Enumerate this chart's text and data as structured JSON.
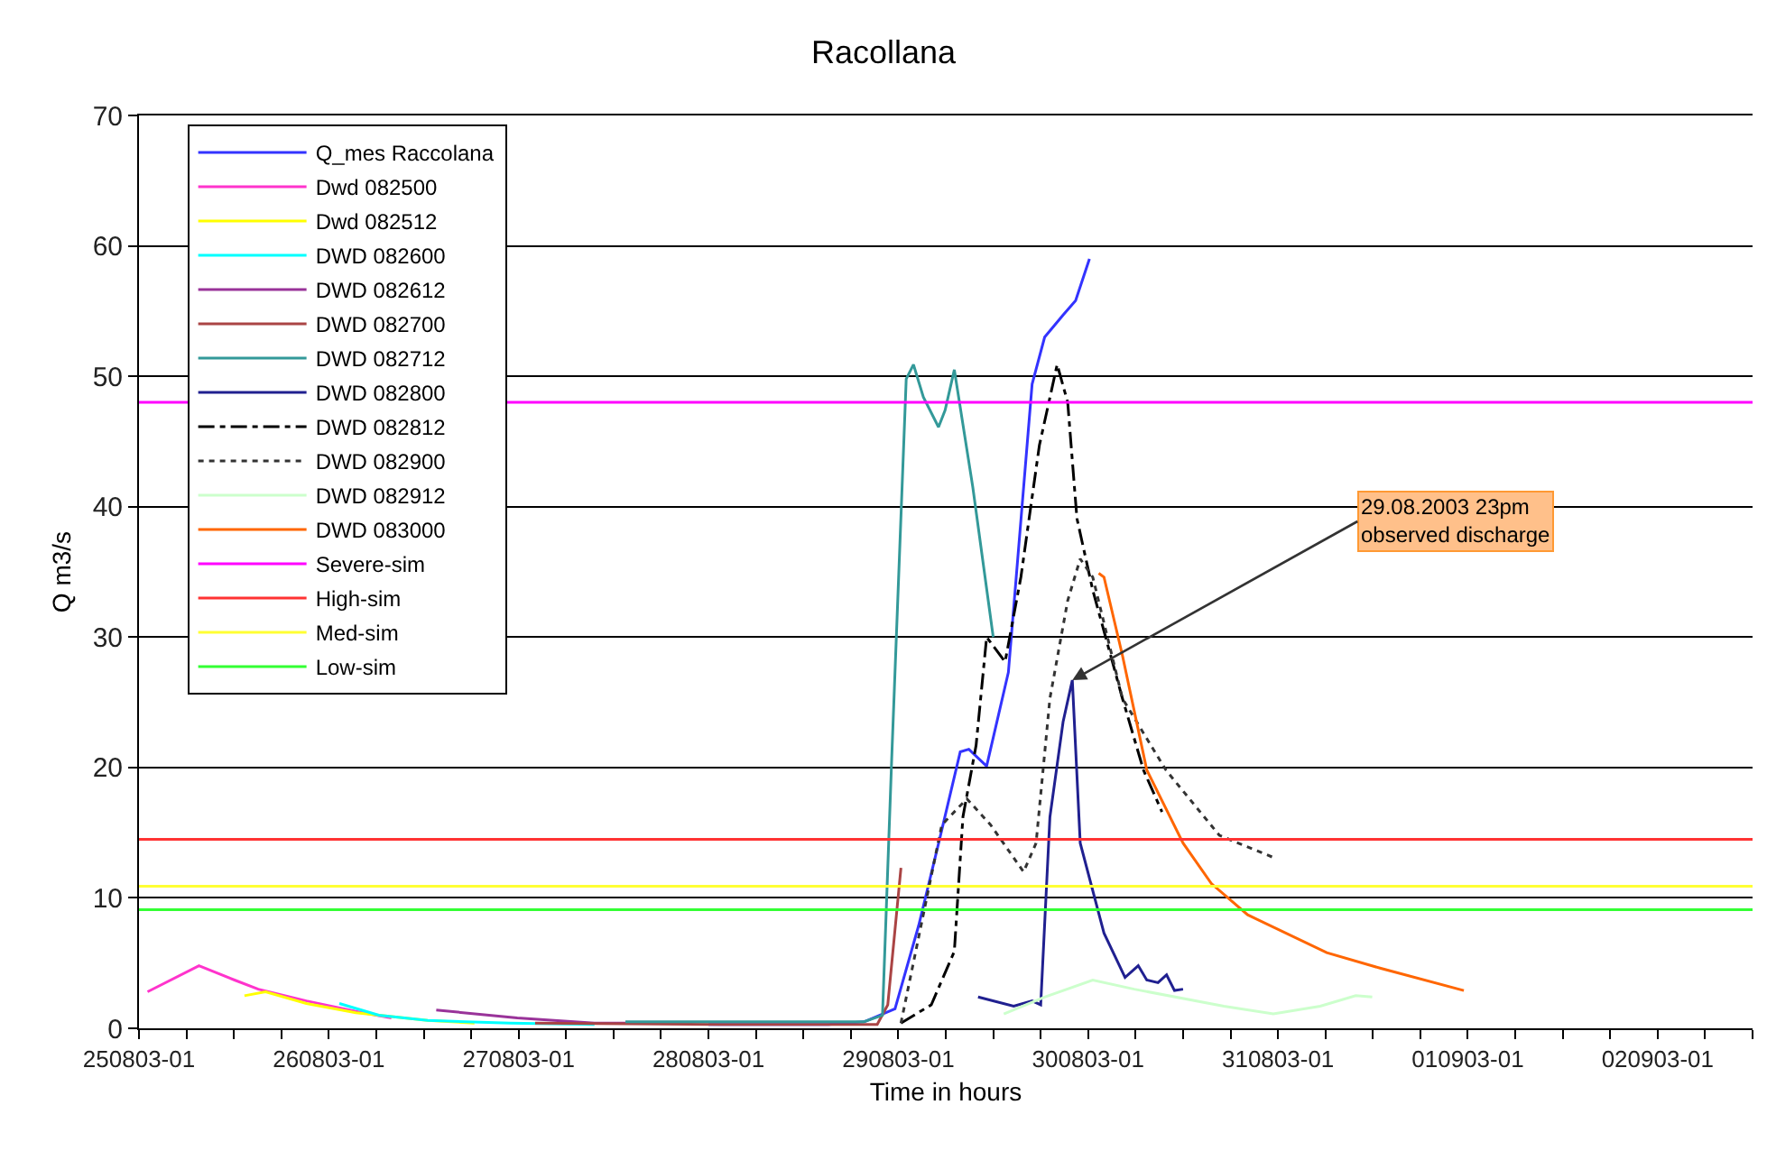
{
  "chart_data": {
    "type": "line",
    "title": "Racollana",
    "xlabel": "Time in hours",
    "ylabel": "Q m3/s",
    "xlim": [
      "2003-08-25T01:00",
      "2003-09-02T13:00"
    ],
    "ylim": [
      0,
      70
    ],
    "xticks": [
      {
        "value": "2003-08-25T01:00",
        "label": "250803-01"
      },
      {
        "value": "2003-08-25T07:00",
        "label": null
      },
      {
        "value": "2003-08-25T13:00",
        "label": null
      },
      {
        "value": "2003-08-25T19:00",
        "label": null
      },
      {
        "value": "2003-08-26T01:00",
        "label": "260803-01"
      },
      {
        "value": "2003-08-26T07:00",
        "label": null
      },
      {
        "value": "2003-08-26T13:00",
        "label": null
      },
      {
        "value": "2003-08-26T19:00",
        "label": null
      },
      {
        "value": "2003-08-27T01:00",
        "label": "270803-01"
      },
      {
        "value": "2003-08-27T07:00",
        "label": null
      },
      {
        "value": "2003-08-27T13:00",
        "label": null
      },
      {
        "value": "2003-08-27T19:00",
        "label": null
      },
      {
        "value": "2003-08-28T01:00",
        "label": "280803-01"
      },
      {
        "value": "2003-08-28T07:00",
        "label": null
      },
      {
        "value": "2003-08-28T13:00",
        "label": null
      },
      {
        "value": "2003-08-28T19:00",
        "label": null
      },
      {
        "value": "2003-08-29T01:00",
        "label": "290803-01"
      },
      {
        "value": "2003-08-29T07:00",
        "label": null
      },
      {
        "value": "2003-08-29T13:00",
        "label": null
      },
      {
        "value": "2003-08-29T19:00",
        "label": null
      },
      {
        "value": "2003-08-30T01:00",
        "label": "300803-01"
      },
      {
        "value": "2003-08-30T07:00",
        "label": null
      },
      {
        "value": "2003-08-30T13:00",
        "label": null
      },
      {
        "value": "2003-08-30T19:00",
        "label": null
      },
      {
        "value": "2003-08-31T01:00",
        "label": "310803-01"
      },
      {
        "value": "2003-08-31T07:00",
        "label": null
      },
      {
        "value": "2003-08-31T13:00",
        "label": null
      },
      {
        "value": "2003-08-31T19:00",
        "label": null
      },
      {
        "value": "2003-09-01T01:00",
        "label": "010903-01"
      },
      {
        "value": "2003-09-01T07:00",
        "label": null
      },
      {
        "value": "2003-09-01T13:00",
        "label": null
      },
      {
        "value": "2003-09-01T19:00",
        "label": null
      },
      {
        "value": "2003-09-02T01:00",
        "label": "020903-01"
      },
      {
        "value": "2003-09-02T07:00",
        "label": null
      },
      {
        "value": "2003-09-02T13:00",
        "label": null
      }
    ],
    "yticks": [
      0,
      10,
      20,
      30,
      40,
      50,
      60,
      70
    ],
    "grid": "y",
    "legend": "top left",
    "marker": "none",
    "annotations": [
      {
        "text": "29.08.2003 23pm\nobserved discharge",
        "x": "2003-08-29T23:00",
        "y": 26.7
      }
    ],
    "series": [
      {
        "name": "Q_mes Raccolana",
        "color": "#3333ff",
        "line_style": "solid",
        "x": [
          "2003-08-28T01:00",
          "2003-08-28T16:10",
          "2003-08-28T20:40",
          "2003-08-29T00:35",
          "2003-08-29T03:35",
          "2003-08-29T06:20",
          "2003-08-29T08:50",
          "2003-08-29T09:55",
          "2003-08-29T12:10",
          "2003-08-29T14:55",
          "2003-08-29T17:55",
          "2003-08-29T19:30",
          "2003-08-29T21:50",
          "2003-08-29T23:25",
          "2003-08-30T01:10"
        ],
        "values": [
          0.3,
          0.3,
          0.5,
          1.5,
          7.9,
          14.8,
          21.2,
          21.4,
          20.1,
          27.3,
          49.4,
          53,
          54.7,
          55.8,
          59
        ]
      },
      {
        "name": "Dwd 082500",
        "color": "#ff33cc",
        "line_style": "solid",
        "x": [
          "2003-08-25T02:05",
          "2003-08-25T08:35",
          "2003-08-25T13:05",
          "2003-08-25T16:05",
          "2003-08-25T22:10",
          "2003-08-26T04:25",
          "2003-08-26T08:55"
        ],
        "values": [
          2.8,
          4.8,
          3.7,
          3.0,
          2.1,
          1.3,
          0.8
        ]
      },
      {
        "name": "Dwd 082512",
        "color": "#ffff00",
        "line_style": "solid",
        "x": [
          "2003-08-25T14:20",
          "2003-08-25T17:00",
          "2003-08-25T22:10",
          "2003-08-26T04:25",
          "2003-08-26T13:30",
          "2003-08-26T19:25"
        ],
        "values": [
          2.5,
          2.8,
          1.9,
          1.2,
          0.6,
          0.4
        ]
      },
      {
        "name": "DWD 082600",
        "color": "#00ffff",
        "line_style": "solid",
        "x": [
          "2003-08-26T02:20",
          "2003-08-26T07:20",
          "2003-08-26T13:30",
          "2003-08-26T23:55",
          "2003-08-27T10:35"
        ],
        "values": [
          1.9,
          1.0,
          0.6,
          0.4,
          0.3
        ]
      },
      {
        "name": "DWD 082612",
        "color": "#993399",
        "line_style": "solid",
        "x": [
          "2003-08-26T14:35",
          "2003-08-27T00:50",
          "2003-08-27T10:35",
          "2003-08-27T18:05"
        ],
        "values": [
          1.4,
          0.8,
          0.4,
          0.4
        ]
      },
      {
        "name": "DWD 082700",
        "color": "#aa4444",
        "line_style": "solid",
        "x": [
          "2003-08-27T03:05",
          "2003-08-28T02:30",
          "2003-08-28T22:20",
          "2003-08-28T23:40",
          "2003-08-29T01:20"
        ],
        "values": [
          0.4,
          0.3,
          0.3,
          1.8,
          12.3
        ]
      },
      {
        "name": "DWD 082712",
        "color": "#339999",
        "line_style": "solid",
        "x": [
          "2003-08-27T14:30",
          "2003-08-28T20:40",
          "2003-08-28T23:00",
          "2003-08-29T00:10",
          "2003-08-29T02:00",
          "2003-08-29T02:55",
          "2003-08-29T04:10",
          "2003-08-29T06:05",
          "2003-08-29T06:55",
          "2003-08-29T08:05",
          "2003-08-29T10:25",
          "2003-08-29T13:00"
        ],
        "values": [
          0.5,
          0.5,
          1.0,
          20.7,
          49.8,
          50.9,
          48.4,
          46.1,
          47.4,
          50.5,
          41.5,
          30
        ]
      },
      {
        "name": "DWD 082800",
        "color": "#202090",
        "line_style": "solid",
        "x": [
          "2003-08-29T11:05",
          "2003-08-29T15:35",
          "2003-08-29T17:55",
          "2003-08-29T19:00",
          "2003-08-29T20:10",
          "2003-08-29T21:50",
          "2003-08-29T23:00",
          "2003-08-30T00:00",
          "2003-08-30T03:00",
          "2003-08-30T05:40",
          "2003-08-30T07:20",
          "2003-08-30T08:25",
          "2003-08-30T09:50",
          "2003-08-30T10:55",
          "2003-08-30T11:55",
          "2003-08-30T13:00"
        ],
        "values": [
          2.4,
          1.7,
          2.1,
          1.8,
          16.2,
          23.5,
          26.7,
          14.2,
          7.3,
          3.9,
          4.8,
          3.7,
          3.5,
          4.1,
          2.9,
          3.0
        ]
      },
      {
        "name": "DWD 082812",
        "color": "#000000",
        "line_style": "dashdot",
        "x": [
          "2003-08-29T01:20",
          "2003-08-29T05:10",
          "2003-08-29T08:05",
          "2003-08-29T09:10",
          "2003-08-29T10:50",
          "2003-08-29T12:10",
          "2003-08-29T14:30",
          "2003-08-29T16:30",
          "2003-08-29T18:50",
          "2003-08-29T21:05",
          "2003-08-29T22:25",
          "2003-08-29T23:35",
          "2003-08-30T01:35",
          "2003-08-30T05:20",
          "2003-08-30T08:00",
          "2003-08-30T10:20"
        ],
        "values": [
          0.4,
          1.8,
          5.9,
          16.2,
          21.7,
          30,
          28.1,
          34.6,
          44.7,
          50.9,
          48,
          39.1,
          33.6,
          25.3,
          19.8,
          16.6
        ]
      },
      {
        "name": "DWD 082900",
        "color": "#333333",
        "line_style": "dotted",
        "x": [
          "2003-08-29T01:20",
          "2003-08-29T06:30",
          "2003-08-29T09:40",
          "2003-08-29T12:40",
          "2003-08-29T16:50",
          "2003-08-29T18:25",
          "2003-08-29T20:10",
          "2003-08-29T22:25",
          "2003-08-30T00:00",
          "2003-08-30T01:35",
          "2003-08-30T05:20",
          "2003-08-30T10:50",
          "2003-08-30T17:35",
          "2003-08-31T00:25"
        ],
        "values": [
          0.4,
          15.6,
          17.6,
          15.6,
          12,
          14.2,
          25.3,
          32.8,
          36,
          34.6,
          25.3,
          19.8,
          14.8,
          13.1
        ]
      },
      {
        "name": "DWD 082912",
        "color": "#ccffcc",
        "line_style": "solid",
        "x": [
          "2003-08-29T14:20",
          "2003-08-29T19:30",
          "2003-08-30T01:35",
          "2003-08-30T06:50",
          "2003-08-30T18:10",
          "2003-08-31T00:25",
          "2003-08-31T06:20",
          "2003-08-31T10:50",
          "2003-08-31T12:55"
        ],
        "values": [
          1.1,
          2.4,
          3.7,
          3.0,
          1.7,
          1.1,
          1.7,
          2.5,
          2.4
        ]
      },
      {
        "name": "DWD 083000",
        "color": "#ff6600",
        "line_style": "solid",
        "x": [
          "2003-08-30T02:20",
          "2003-08-30T03:00",
          "2003-08-30T05:20",
          "2003-08-30T08:25",
          "2003-08-30T13:00",
          "2003-08-30T16:35",
          "2003-08-30T21:10",
          "2003-08-31T07:10",
          "2003-08-31T14:00",
          "2003-09-01T00:30"
        ],
        "values": [
          34.9,
          34.6,
          28.6,
          19.8,
          14.2,
          11.1,
          8.7,
          5.8,
          4.6,
          2.9
        ]
      },
      {
        "name": "Severe-sim",
        "color": "#ff00ff",
        "line_style": "solid",
        "x": [
          "2003-08-25T01:00",
          "2003-09-02T13:00"
        ],
        "values": [
          48,
          48
        ]
      },
      {
        "name": "High-sim",
        "color": "#ff3333",
        "line_style": "solid",
        "x": [
          "2003-08-25T01:00",
          "2003-09-02T13:00"
        ],
        "values": [
          14.5,
          14.5
        ]
      },
      {
        "name": "Med-sim",
        "color": "#ffff33",
        "line_style": "solid",
        "x": [
          "2003-08-25T01:00",
          "2003-09-02T13:00"
        ],
        "values": [
          10.9,
          10.9
        ]
      },
      {
        "name": "Low-sim",
        "color": "#33ff33",
        "line_style": "solid",
        "x": [
          "2003-08-25T01:00",
          "2003-09-02T13:00"
        ],
        "values": [
          9.1,
          9.1
        ]
      }
    ]
  }
}
